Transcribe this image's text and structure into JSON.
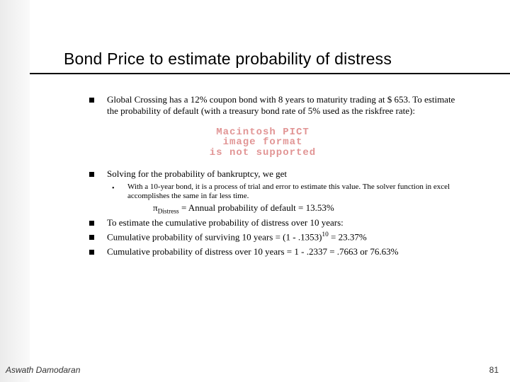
{
  "title": {
    "text": "Bond Price to estimate probability of distress",
    "fontsize": 23
  },
  "bullets": {
    "b1": "Global Crossing has a 12% coupon bond with 8 years to maturity trading at $ 653. To estimate the probability of default (with a treasury bond rate of 5% used as the riskfree rate):",
    "b2": "Solving for the probability of bankruptcy, we get",
    "sub1": "With a 10-year bond, it is a process of trial and error to estimate this value. The solver function in excel accomplishes the same in far less time.",
    "formula_pi": "π",
    "formula_sub": "Distress",
    "formula_rest": " = Annual probability of default = 13.53%",
    "b3": "To estimate the cumulative probability of distress over 10 years:",
    "b4_a": "Cumulative probability of surviving 10 years = (1 - .1353)",
    "b4_exp": "10",
    "b4_b": " = 23.37%",
    "b5": "Cumulative probability of distress over 10 years = 1 - .2337 = .7663 or 76.63%"
  },
  "placeholder": {
    "l1": "Macintosh PICT",
    "l2": "image format",
    "l3": "is not supported",
    "fontsize": 14
  },
  "body_fontsize": 13,
  "sub_fontsize": 11,
  "footer": {
    "author": "Aswath Damodaran",
    "page": "81",
    "fontsize": 12
  },
  "colors": {
    "text": "#000000",
    "placeholder": "rgba(200,60,60,0.55)",
    "background": "#ffffff"
  }
}
